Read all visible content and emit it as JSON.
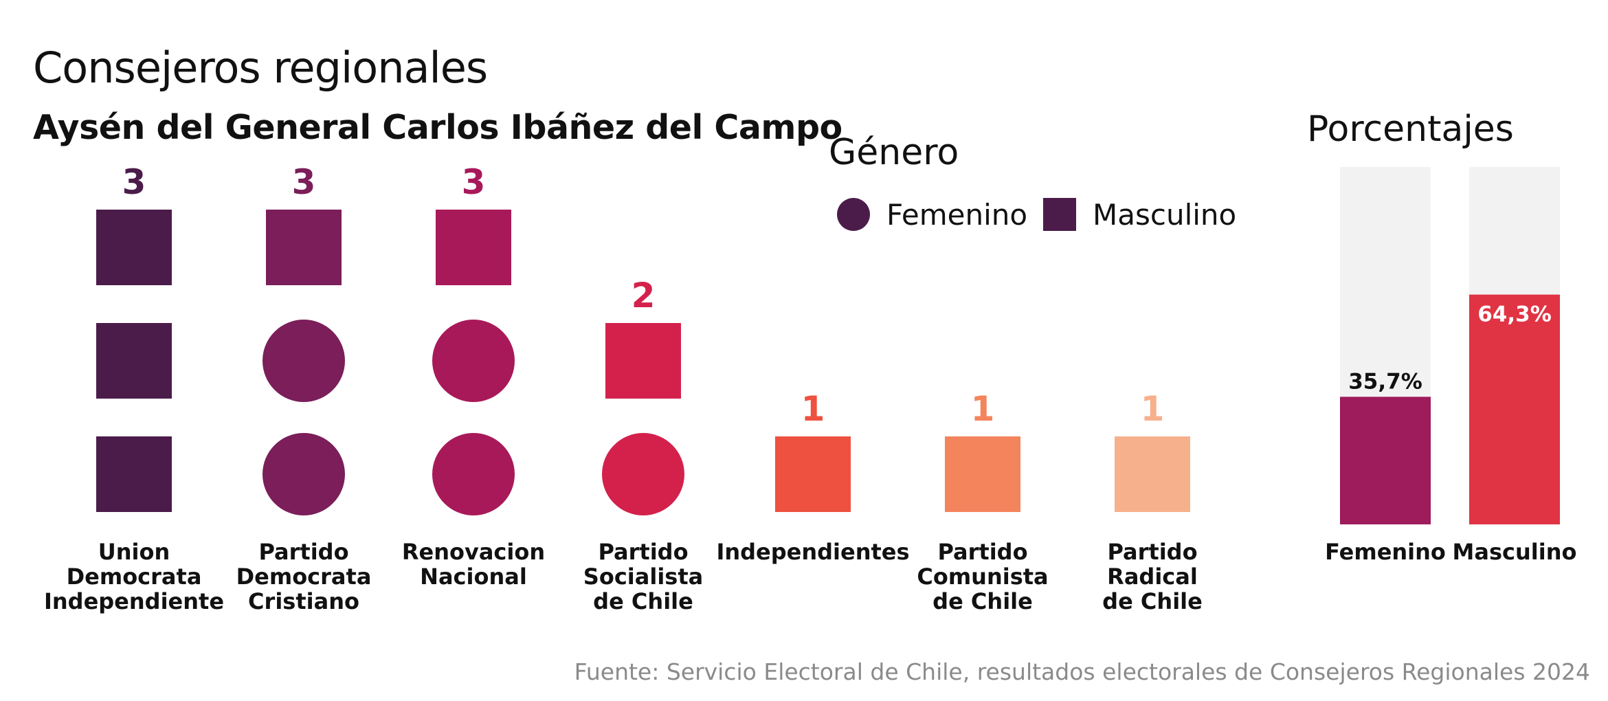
{
  "title": "Consejeros regionales",
  "subtitle": "Aysén del General Carlos Ibáñez del Campo",
  "legend": {
    "title": "Género",
    "items": [
      {
        "label": "Femenino",
        "shape": "circle"
      },
      {
        "label": "Masculino",
        "shape": "square"
      }
    ],
    "swatch_color": "#4b1c4a"
  },
  "percentages_title": "Porcentajes",
  "source": "Fuente: Servicio Electoral de Chile, resultados electorales de Consejeros Regionales 2024",
  "chart_data": [
    {
      "type": "unit-chart",
      "categories": [
        "Union Democrata Independiente",
        "Partido Democrata Cristiano",
        "Renovacion Nacional",
        "Partido Socialista de Chile",
        "Independientes",
        "Partido Comunista de Chile",
        "Partido Radical de Chile"
      ],
      "category_label_lines": [
        [
          "Union",
          "Democrata",
          "Independiente"
        ],
        [
          "Partido",
          "Democrata",
          "Cristiano"
        ],
        [
          "Renovacion",
          "Nacional"
        ],
        [
          "Partido",
          "Socialista",
          "de Chile"
        ],
        [
          "Independientes"
        ],
        [
          "Partido",
          "Comunista",
          "de Chile"
        ],
        [
          "Partido",
          "Radical",
          "de Chile"
        ]
      ],
      "totals": [
        3,
        3,
        3,
        2,
        1,
        1,
        1
      ],
      "femenino": [
        0,
        2,
        2,
        1,
        0,
        0,
        0
      ],
      "masculino": [
        3,
        1,
        1,
        1,
        1,
        1,
        1
      ],
      "colors": [
        "#4b1c4a",
        "#7b1e5a",
        "#a8195a",
        "#d4214c",
        "#ee5140",
        "#f4845c",
        "#f6b18c"
      ]
    },
    {
      "type": "bar",
      "categories": [
        "Femenino",
        "Masculino"
      ],
      "values": [
        35.7,
        64.3
      ],
      "value_labels": [
        "35,7%",
        "64,3%"
      ],
      "ylim": [
        0,
        100
      ],
      "colors": [
        "#9e1b5c",
        "#e03444"
      ],
      "track_color": "#f2f2f2",
      "label_colors": [
        "#111111",
        "#ffffff"
      ]
    }
  ]
}
